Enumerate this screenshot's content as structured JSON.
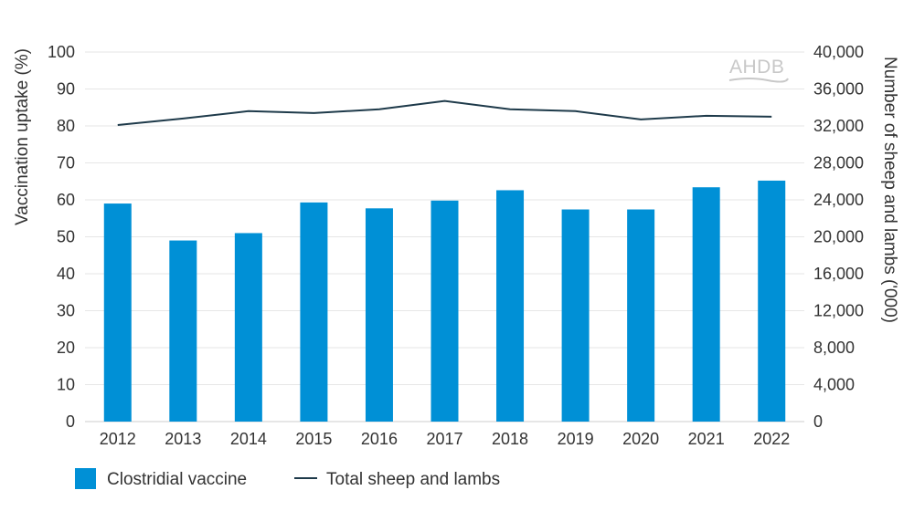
{
  "logo": {
    "text": "AHDB"
  },
  "chart_data": {
    "type": "bar+line",
    "categories": [
      "2012",
      "2013",
      "2014",
      "2015",
      "2016",
      "2017",
      "2018",
      "2019",
      "2020",
      "2021",
      "2022"
    ],
    "series": [
      {
        "name": "Clostridial vaccine",
        "type": "bar",
        "axis": "left",
        "color": "#0090d6",
        "values": [
          59,
          49,
          51,
          59.3,
          57.7,
          59.8,
          62.6,
          57.4,
          57.4,
          63.4,
          65.2
        ]
      },
      {
        "name": "Total sheep and lambs",
        "type": "line",
        "axis": "right",
        "color": "#1e3a4a",
        "values": [
          32100,
          32800,
          33600,
          33400,
          33800,
          34700,
          33800,
          33600,
          32700,
          33100,
          33000
        ]
      }
    ],
    "y_left": {
      "label": "Vaccination uptake (%)",
      "range": [
        0,
        100
      ],
      "ticks": [
        "0",
        "10",
        "20",
        "30",
        "40",
        "50",
        "60",
        "70",
        "80",
        "90",
        "100"
      ]
    },
    "y_right": {
      "label": "Number of sheep and lambs ('000)",
      "range": [
        0,
        40000
      ],
      "ticks": [
        "0",
        "4,000",
        "8,000",
        "12,000",
        "16,000",
        "20,000",
        "24,000",
        "28,000",
        "32,000",
        "36,000",
        "40,000"
      ]
    },
    "grid": true,
    "legend": "bottom-left"
  }
}
